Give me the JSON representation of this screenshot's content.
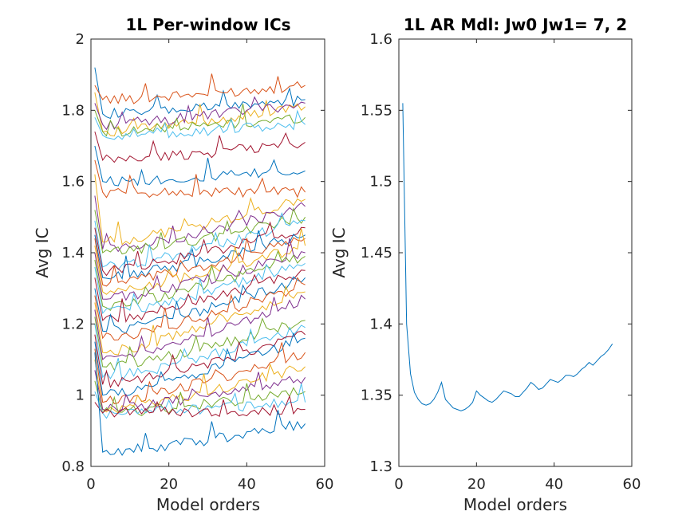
{
  "chart_data": [
    {
      "type": "line",
      "title": "1L Per-window ICs",
      "xlabel": "Model orders",
      "ylabel": "Avg IC",
      "xlim": [
        0,
        60
      ],
      "ylim": [
        0.8,
        2
      ],
      "xticks": [
        0,
        20,
        40,
        60
      ],
      "yticks": [
        0.8,
        1,
        1.2,
        1.4,
        1.6,
        1.8,
        2
      ],
      "xtick_labels": [
        "0",
        "20",
        "40",
        "60"
      ],
      "ytick_labels": [
        "0.8",
        "1",
        "1.2",
        "1.4",
        "1.6",
        "1.8",
        "2"
      ],
      "grid": false,
      "legend": "none",
      "x_range_of_series": [
        1,
        55
      ],
      "series_count": 36,
      "series_colors": [
        "#0072bd",
        "#d95319",
        "#edb120",
        "#7e2f8e",
        "#77ac30",
        "#4dbeee",
        "#a2142f"
      ],
      "series_summary": {
        "start_values": [
          1.92,
          1.87,
          1.85,
          1.82,
          1.8,
          1.78,
          1.74,
          1.7,
          1.66,
          1.62,
          1.56,
          1.52,
          1.49,
          1.47,
          1.45,
          1.44,
          1.42,
          1.4,
          1.38,
          1.36,
          1.33,
          1.3,
          1.28,
          1.26,
          1.24,
          1.22,
          1.2,
          1.17,
          1.15,
          1.13,
          1.1,
          1.07,
          1.04,
          1.01,
          0.98,
          1.12
        ],
        "min_values": [
          1.79,
          1.83,
          1.74,
          1.76,
          1.74,
          1.73,
          1.66,
          1.6,
          1.57,
          1.43,
          1.41,
          1.4,
          1.36,
          1.35,
          1.33,
          1.31,
          1.29,
          1.27,
          1.25,
          1.23,
          1.21,
          1.18,
          1.16,
          1.12,
          1.1,
          1.08,
          1.05,
          1.03,
          1.0,
          0.98,
          0.96,
          0.96,
          0.95,
          0.95,
          0.95,
          0.84
        ],
        "end_values": [
          1.83,
          1.87,
          1.81,
          1.82,
          1.78,
          1.76,
          1.71,
          1.63,
          1.57,
          1.55,
          1.53,
          1.5,
          1.49,
          1.47,
          1.45,
          1.44,
          1.42,
          1.4,
          1.39,
          1.37,
          1.35,
          1.33,
          1.31,
          1.29,
          1.27,
          1.21,
          1.19,
          1.17,
          1.16,
          1.12,
          1.08,
          1.05,
          1.01,
          0.98,
          0.96,
          0.92
        ]
      }
    },
    {
      "type": "line",
      "title": "1L AR Mdl: Jw0 Jw1= 7, 2",
      "xlabel": "Model orders",
      "ylabel": "Avg IC",
      "xlim": [
        0,
        60
      ],
      "ylim": [
        1.3,
        1.6
      ],
      "xticks": [
        0,
        20,
        40,
        60
      ],
      "yticks": [
        1.3,
        1.35,
        1.4,
        1.45,
        1.5,
        1.55,
        1.6
      ],
      "xtick_labels": [
        "0",
        "20",
        "40",
        "60"
      ],
      "ytick_labels": [
        "1.3",
        "1.35",
        "1.4",
        "1.45",
        "1.5",
        "1.55",
        "1.6"
      ],
      "grid": false,
      "legend": "none",
      "series": [
        {
          "color": "#0072bd",
          "x": [
            1,
            2,
            3,
            4,
            5,
            6,
            7,
            8,
            9,
            10,
            11,
            12,
            13,
            14,
            15,
            16,
            17,
            18,
            19,
            20,
            21,
            22,
            23,
            24,
            25,
            26,
            27,
            28,
            29,
            30,
            31,
            32,
            33,
            34,
            35,
            36,
            37,
            38,
            39,
            40,
            41,
            42,
            43,
            44,
            45,
            46,
            47,
            48,
            49,
            50,
            51,
            52,
            53,
            54,
            55
          ],
          "values": [
            1.555,
            1.4,
            1.365,
            1.352,
            1.347,
            1.344,
            1.343,
            1.344,
            1.347,
            1.352,
            1.359,
            1.347,
            1.344,
            1.341,
            1.34,
            1.339,
            1.34,
            1.342,
            1.345,
            1.353,
            1.35,
            1.348,
            1.346,
            1.345,
            1.347,
            1.35,
            1.353,
            1.352,
            1.351,
            1.349,
            1.349,
            1.352,
            1.355,
            1.359,
            1.357,
            1.354,
            1.355,
            1.358,
            1.361,
            1.36,
            1.359,
            1.361,
            1.364,
            1.364,
            1.363,
            1.365,
            1.368,
            1.37,
            1.373,
            1.371,
            1.374,
            1.377,
            1.379,
            1.382,
            1.386
          ]
        }
      ]
    }
  ]
}
